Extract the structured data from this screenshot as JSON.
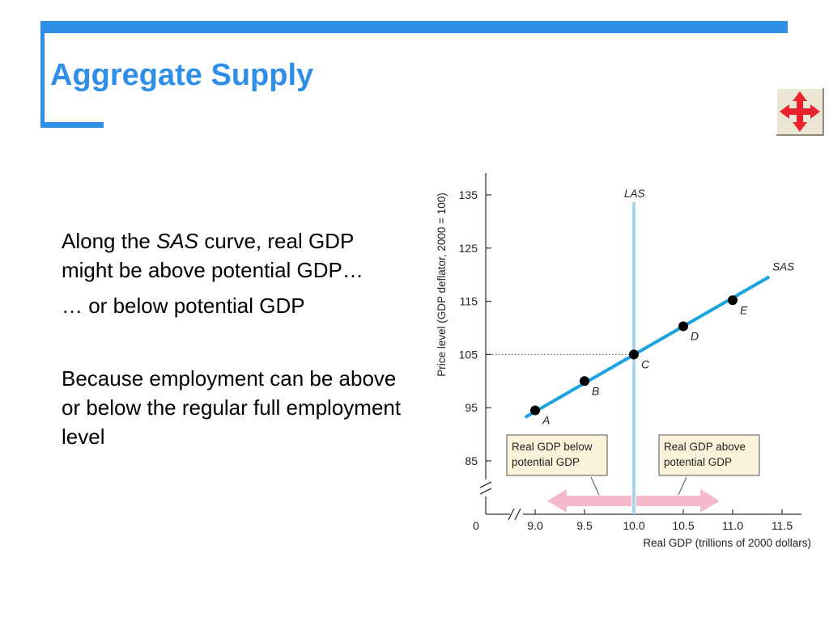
{
  "slide": {
    "title": "Aggregate Supply",
    "colors": {
      "accent": "#2f8fe8",
      "text": "#000000",
      "button_bg": "#ebe6d4",
      "button_icon": "#e8232e"
    },
    "nav_icon": "four-way-arrows-icon"
  },
  "body": {
    "p1_before": "Along the ",
    "p1_italic": "SAS",
    "p1_after": " curve, real GDP might be above potential GDP…",
    "p2": "… or below potential GDP",
    "p3": "Because employment can be above or below the regular full employment level"
  },
  "chart_data": {
    "type": "line",
    "xlabel": "Real GDP (trillions of 2000 dollars)",
    "ylabel": "Price level (GDP deflator, 2000 = 100)",
    "xlim": [
      0,
      11.5
    ],
    "x_break_start": 8.75,
    "ylim": [
      0,
      135
    ],
    "y_break_start": 80,
    "x_origin_label": "0",
    "x_ticks": [
      9.0,
      9.5,
      10.0,
      10.5,
      11.0,
      11.5
    ],
    "x_tick_labels": [
      "9.0",
      "9.5",
      "10.0",
      "10.5",
      "11.0",
      "11.5"
    ],
    "y_ticks": [
      85,
      95,
      105,
      115,
      125,
      135
    ],
    "y_tick_labels": [
      "85",
      "95",
      "105",
      "115",
      "125",
      "135"
    ],
    "series": [
      {
        "name": "SAS",
        "color": "#1aa3e0",
        "x": [
          8.9,
          11.37
        ],
        "y": [
          93.2,
          119.6
        ]
      },
      {
        "name": "LAS",
        "color": "#a9d3ec",
        "x": [
          10.0,
          10.0
        ],
        "y": [
          76,
          134
        ]
      }
    ],
    "points": [
      {
        "label": "A",
        "x": 9.0,
        "y": 94.5
      },
      {
        "label": "B",
        "x": 9.5,
        "y": 100
      },
      {
        "label": "C",
        "x": 10.0,
        "y": 105
      },
      {
        "label": "D",
        "x": 10.5,
        "y": 110.3
      },
      {
        "label": "E",
        "x": 11.0,
        "y": 115.2
      }
    ],
    "reference_line": {
      "y": 105,
      "from_x": 8.75,
      "to_x": 10.0,
      "style": "dotted"
    },
    "annotations": [
      {
        "lines": [
          "Real GDP below",
          "potential GDP"
        ],
        "arrow": "left",
        "arrow_color": "#f5b9cb",
        "box_color": "#fbf3d9"
      },
      {
        "lines": [
          "Real GDP above",
          "potential GDP"
        ],
        "arrow": "right",
        "arrow_color": "#f5b9cb",
        "box_color": "#fbf3d9"
      }
    ]
  }
}
